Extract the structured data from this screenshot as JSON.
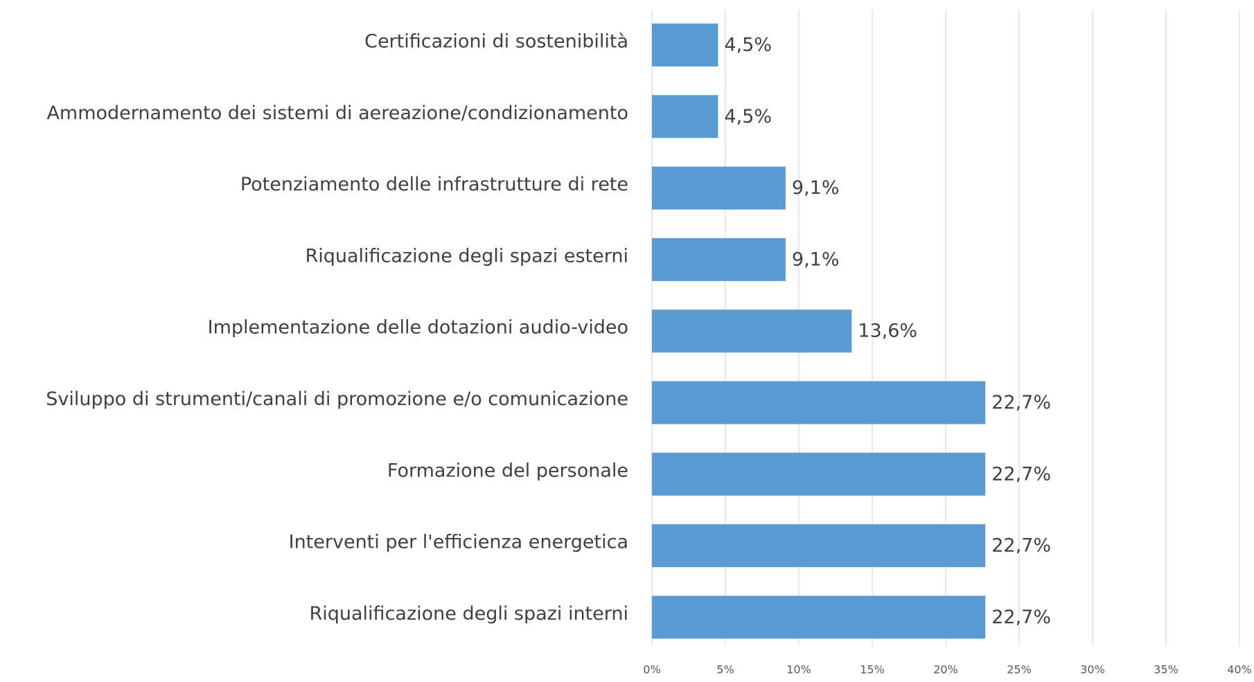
{
  "chart_data": {
    "type": "bar",
    "orientation": "horizontal",
    "categories": [
      "Certificazioni di sostenibilità",
      "Ammodernamento dei sistemi di aereazione/condizionamento",
      "Potenziamento delle infrastrutture di rete",
      "Riqualificazione degli spazi esterni",
      "Implementazione delle dotazioni audio-video",
      "Sviluppo di strumenti/canali di promozione e/o comunicazione",
      "Formazione del personale",
      "Interventi per l'efficienza energetica",
      "Riqualificazione degli spazi interni"
    ],
    "values": [
      4.5,
      4.5,
      9.1,
      9.1,
      13.6,
      22.7,
      22.7,
      22.7,
      22.7
    ],
    "value_labels": [
      "4,5%",
      "4,5%",
      "9,1%",
      "9,1%",
      "13,6%",
      "22,7%",
      "22,7%",
      "22,7%",
      "22,7%"
    ],
    "color": "#5b9bd5",
    "xlim": [
      0,
      40
    ],
    "xticks": [
      {
        "value": 0,
        "label": "0%"
      },
      {
        "value": 5,
        "label": "5%"
      },
      {
        "value": 10,
        "label": "10%"
      },
      {
        "value": 15,
        "label": "15%"
      },
      {
        "value": 20,
        "label": "20%"
      },
      {
        "value": 25,
        "label": "25%"
      },
      {
        "value": 30,
        "label": "30%"
      },
      {
        "value": 35,
        "label": "35%"
      },
      {
        "value": 40,
        "label": "40%"
      }
    ],
    "grid": true
  }
}
